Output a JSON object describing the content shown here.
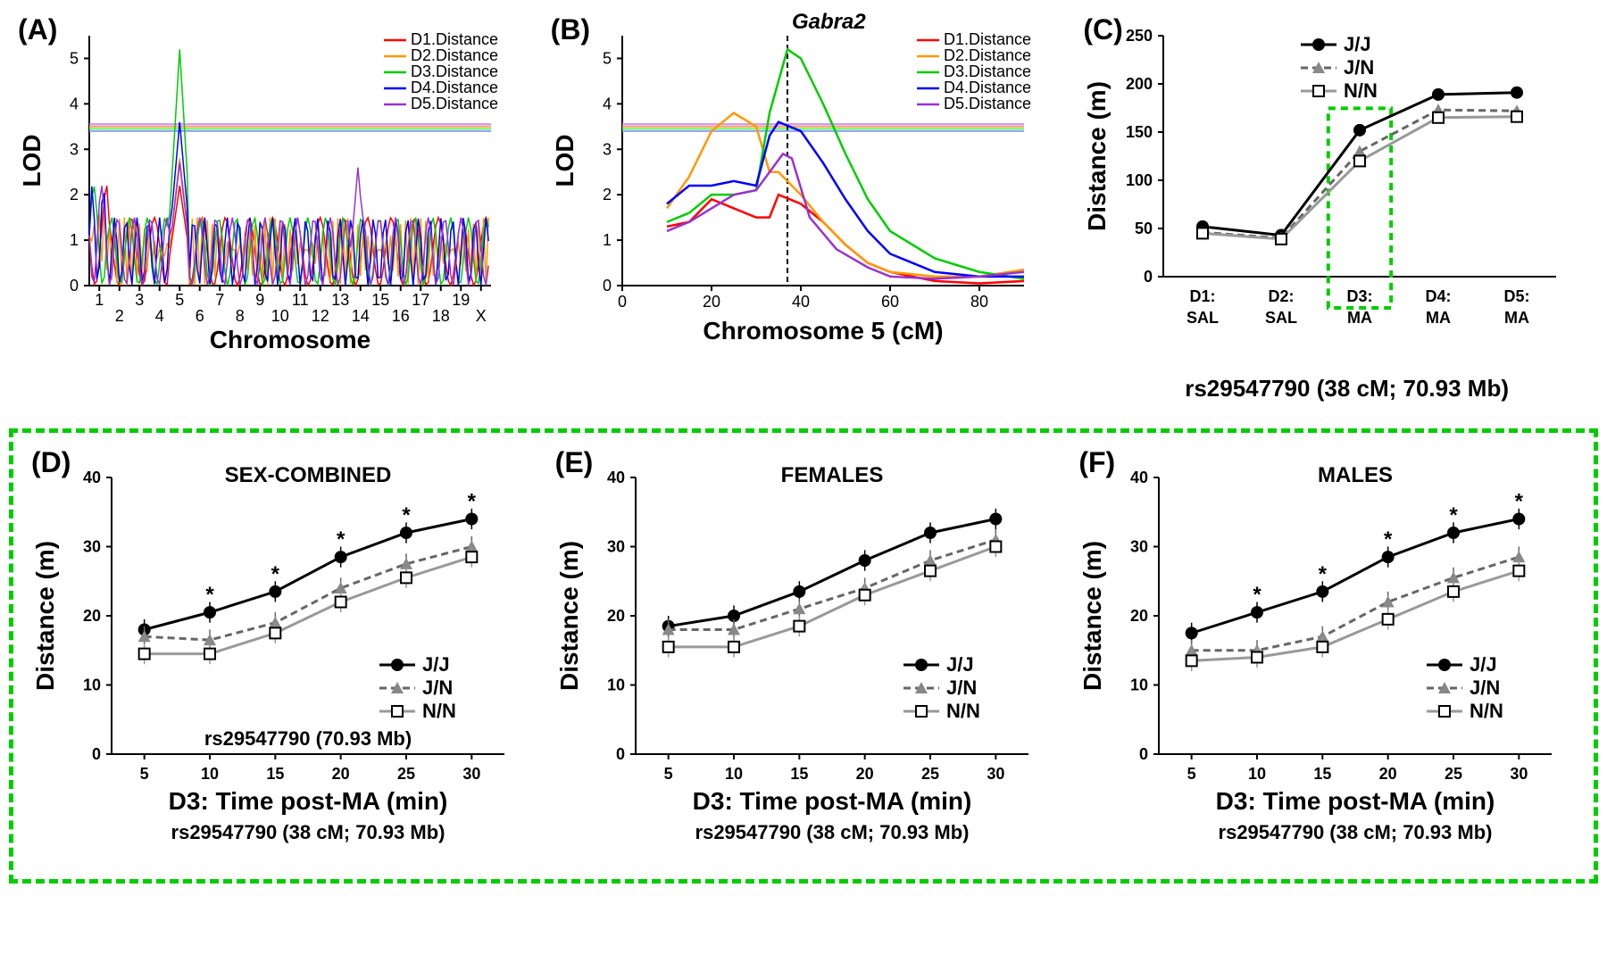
{
  "panels": {
    "A": {
      "label": "(A)"
    },
    "B": {
      "label": "(B)"
    },
    "C": {
      "label": "(C)"
    },
    "D": {
      "label": "(D)"
    },
    "E": {
      "label": "(E)"
    },
    "F": {
      "label": "(F)"
    }
  },
  "variant_label_full": "rs29547790 (38 cM; 70.93 Mb)",
  "variant_label_short": "rs29547790 (70.93 Mb)",
  "colors": {
    "d1": "#ff0000",
    "d2": "#ff9900",
    "d3": "#00cc00",
    "d4": "#0000ff",
    "d5": "#9933cc",
    "jj_line": "#000000",
    "jn_line": "#666666",
    "nn_line": "#999999",
    "green_box": "#00cc00",
    "threshold1": "#ff6666",
    "threshold2": "#ffaa66",
    "threshold3": "#66ff66",
    "threshold4": "#9999ff",
    "threshold5": "#cc99ff"
  },
  "panelA": {
    "type": "line",
    "xlabel": "Chromosome",
    "ylabel": "LOD",
    "ylim": [
      0,
      5.5
    ],
    "yticks": [
      0,
      1,
      2,
      3,
      4,
      5
    ],
    "xticks": [
      "1",
      "2",
      "3",
      "4",
      "5",
      "6",
      "7",
      "8",
      "9",
      "10",
      "11",
      "12",
      "13",
      "14",
      "15",
      "16",
      "17",
      "18",
      "19",
      "X"
    ],
    "thresholds": [
      3.55,
      3.5,
      3.45,
      3.4,
      3.55
    ],
    "legend": [
      "D1.Distance",
      "D2.Distance",
      "D3.Distance",
      "D4.Distance",
      "D5.Distance"
    ]
  },
  "panelB": {
    "type": "line",
    "xlabel": "Chromosome 5 (cM)",
    "ylabel": "LOD",
    "ylim": [
      0,
      5.5
    ],
    "yticks": [
      0,
      1,
      2,
      3,
      4,
      5
    ],
    "xticks": [
      0,
      20,
      40,
      60,
      80
    ],
    "gene_label": "Gabra2",
    "gene_pos": 37,
    "thresholds": [
      3.55,
      3.5,
      3.45,
      3.4,
      3.55
    ],
    "legend": [
      "D1.Distance",
      "D2.Distance",
      "D3.Distance",
      "D4.Distance",
      "D5.Distance"
    ],
    "series": {
      "d1": [
        [
          10,
          1.3
        ],
        [
          15,
          1.4
        ],
        [
          20,
          1.9
        ],
        [
          25,
          1.7
        ],
        [
          30,
          1.5
        ],
        [
          33,
          1.5
        ],
        [
          35,
          2.0
        ],
        [
          40,
          1.8
        ],
        [
          45,
          1.4
        ],
        [
          50,
          0.9
        ],
        [
          55,
          0.5
        ],
        [
          60,
          0.3
        ],
        [
          70,
          0.1
        ],
        [
          80,
          0.05
        ],
        [
          90,
          0.1
        ]
      ],
      "d2": [
        [
          10,
          1.7
        ],
        [
          15,
          2.4
        ],
        [
          20,
          3.4
        ],
        [
          25,
          3.8
        ],
        [
          30,
          3.5
        ],
        [
          33,
          2.5
        ],
        [
          35,
          2.5
        ],
        [
          40,
          2.0
        ],
        [
          45,
          1.4
        ],
        [
          50,
          0.9
        ],
        [
          55,
          0.5
        ],
        [
          60,
          0.3
        ],
        [
          70,
          0.2
        ],
        [
          80,
          0.2
        ],
        [
          90,
          0.35
        ]
      ],
      "d3": [
        [
          10,
          1.4
        ],
        [
          15,
          1.6
        ],
        [
          20,
          2.0
        ],
        [
          25,
          2.0
        ],
        [
          30,
          2.1
        ],
        [
          33,
          3.8
        ],
        [
          37,
          5.2
        ],
        [
          40,
          5.0
        ],
        [
          45,
          4.0
        ],
        [
          50,
          2.9
        ],
        [
          55,
          1.9
        ],
        [
          60,
          1.2
        ],
        [
          70,
          0.6
        ],
        [
          80,
          0.3
        ],
        [
          90,
          0.15
        ]
      ],
      "d4": [
        [
          10,
          1.8
        ],
        [
          15,
          2.2
        ],
        [
          20,
          2.2
        ],
        [
          25,
          2.3
        ],
        [
          30,
          2.2
        ],
        [
          33,
          3.3
        ],
        [
          35,
          3.6
        ],
        [
          40,
          3.4
        ],
        [
          45,
          2.7
        ],
        [
          50,
          1.9
        ],
        [
          55,
          1.2
        ],
        [
          60,
          0.7
        ],
        [
          70,
          0.3
        ],
        [
          80,
          0.2
        ],
        [
          90,
          0.2
        ]
      ],
      "d5": [
        [
          10,
          1.2
        ],
        [
          15,
          1.4
        ],
        [
          20,
          1.7
        ],
        [
          25,
          2.0
        ],
        [
          30,
          2.1
        ],
        [
          33,
          2.5
        ],
        [
          36,
          2.9
        ],
        [
          38,
          2.8
        ],
        [
          42,
          1.5
        ],
        [
          48,
          0.8
        ],
        [
          55,
          0.4
        ],
        [
          60,
          0.2
        ],
        [
          70,
          0.15
        ],
        [
          80,
          0.2
        ],
        [
          90,
          0.3
        ]
      ]
    }
  },
  "panelC": {
    "type": "line",
    "xlabel_lines": [
      [
        "D1:",
        "D2:",
        "D3:",
        "D4:",
        "D5:"
      ],
      [
        "SAL",
        "SAL",
        "MA",
        "MA",
        "MA"
      ]
    ],
    "ylabel": "Distance (m)",
    "ylim": [
      0,
      250
    ],
    "yticks": [
      0,
      50,
      100,
      150,
      200,
      250
    ],
    "legend": [
      "J/J",
      "J/N",
      "N/N"
    ],
    "highlight_x": 3,
    "series": {
      "jj": [
        52,
        43,
        152,
        189,
        191
      ],
      "jn": [
        46,
        40,
        130,
        173,
        172
      ],
      "nn": [
        45,
        39,
        120,
        165,
        166
      ]
    },
    "err": {
      "jj": [
        4,
        3,
        5,
        5,
        5
      ],
      "jn": [
        4,
        3,
        5,
        5,
        5
      ],
      "nn": [
        4,
        3,
        5,
        5,
        5
      ]
    }
  },
  "panelD": {
    "title": "SEX-COMBINED",
    "xlabel": "D3: Time post-MA (min)",
    "ylabel": "Distance (m)",
    "ylim": [
      0,
      40
    ],
    "yticks": [
      0,
      10,
      20,
      30,
      40
    ],
    "xticks": [
      5,
      10,
      15,
      20,
      25,
      30
    ],
    "legend": [
      "J/J",
      "J/N",
      "N/N"
    ],
    "stars": [
      false,
      true,
      true,
      true,
      true,
      true
    ],
    "series": {
      "jj": [
        18,
        20.5,
        23.5,
        28.5,
        32,
        34
      ],
      "jn": [
        17,
        16.5,
        19,
        24,
        27.5,
        30
      ],
      "nn": [
        14.5,
        14.5,
        17.5,
        22,
        25.5,
        28.5
      ]
    }
  },
  "panelE": {
    "title": "FEMALES",
    "xlabel": "D3: Time post-MA (min)",
    "ylabel": "Distance (m)",
    "ylim": [
      0,
      40
    ],
    "yticks": [
      0,
      10,
      20,
      30,
      40
    ],
    "xticks": [
      5,
      10,
      15,
      20,
      25,
      30
    ],
    "legend": [
      "J/J",
      "J/N",
      "N/N"
    ],
    "series": {
      "jj": [
        18.5,
        20,
        23.5,
        28,
        32,
        34
      ],
      "jn": [
        18,
        18,
        21,
        24,
        28,
        31
      ],
      "nn": [
        15.5,
        15.5,
        18.5,
        23,
        26.5,
        30
      ]
    }
  },
  "panelF": {
    "title": "MALES",
    "xlabel": "D3: Time post-MA (min)",
    "ylabel": "Distance (m)",
    "ylim": [
      0,
      40
    ],
    "yticks": [
      0,
      10,
      20,
      30,
      40
    ],
    "xticks": [
      5,
      10,
      15,
      20,
      25,
      30
    ],
    "legend": [
      "J/J",
      "J/N",
      "N/N"
    ],
    "stars": [
      false,
      true,
      true,
      true,
      true,
      true
    ],
    "series": {
      "jj": [
        17.5,
        20.5,
        23.5,
        28.5,
        32,
        34
      ],
      "jn": [
        15,
        15,
        17,
        22,
        25.5,
        28.5
      ],
      "nn": [
        13.5,
        14,
        15.5,
        19.5,
        23.5,
        26.5
      ]
    }
  }
}
